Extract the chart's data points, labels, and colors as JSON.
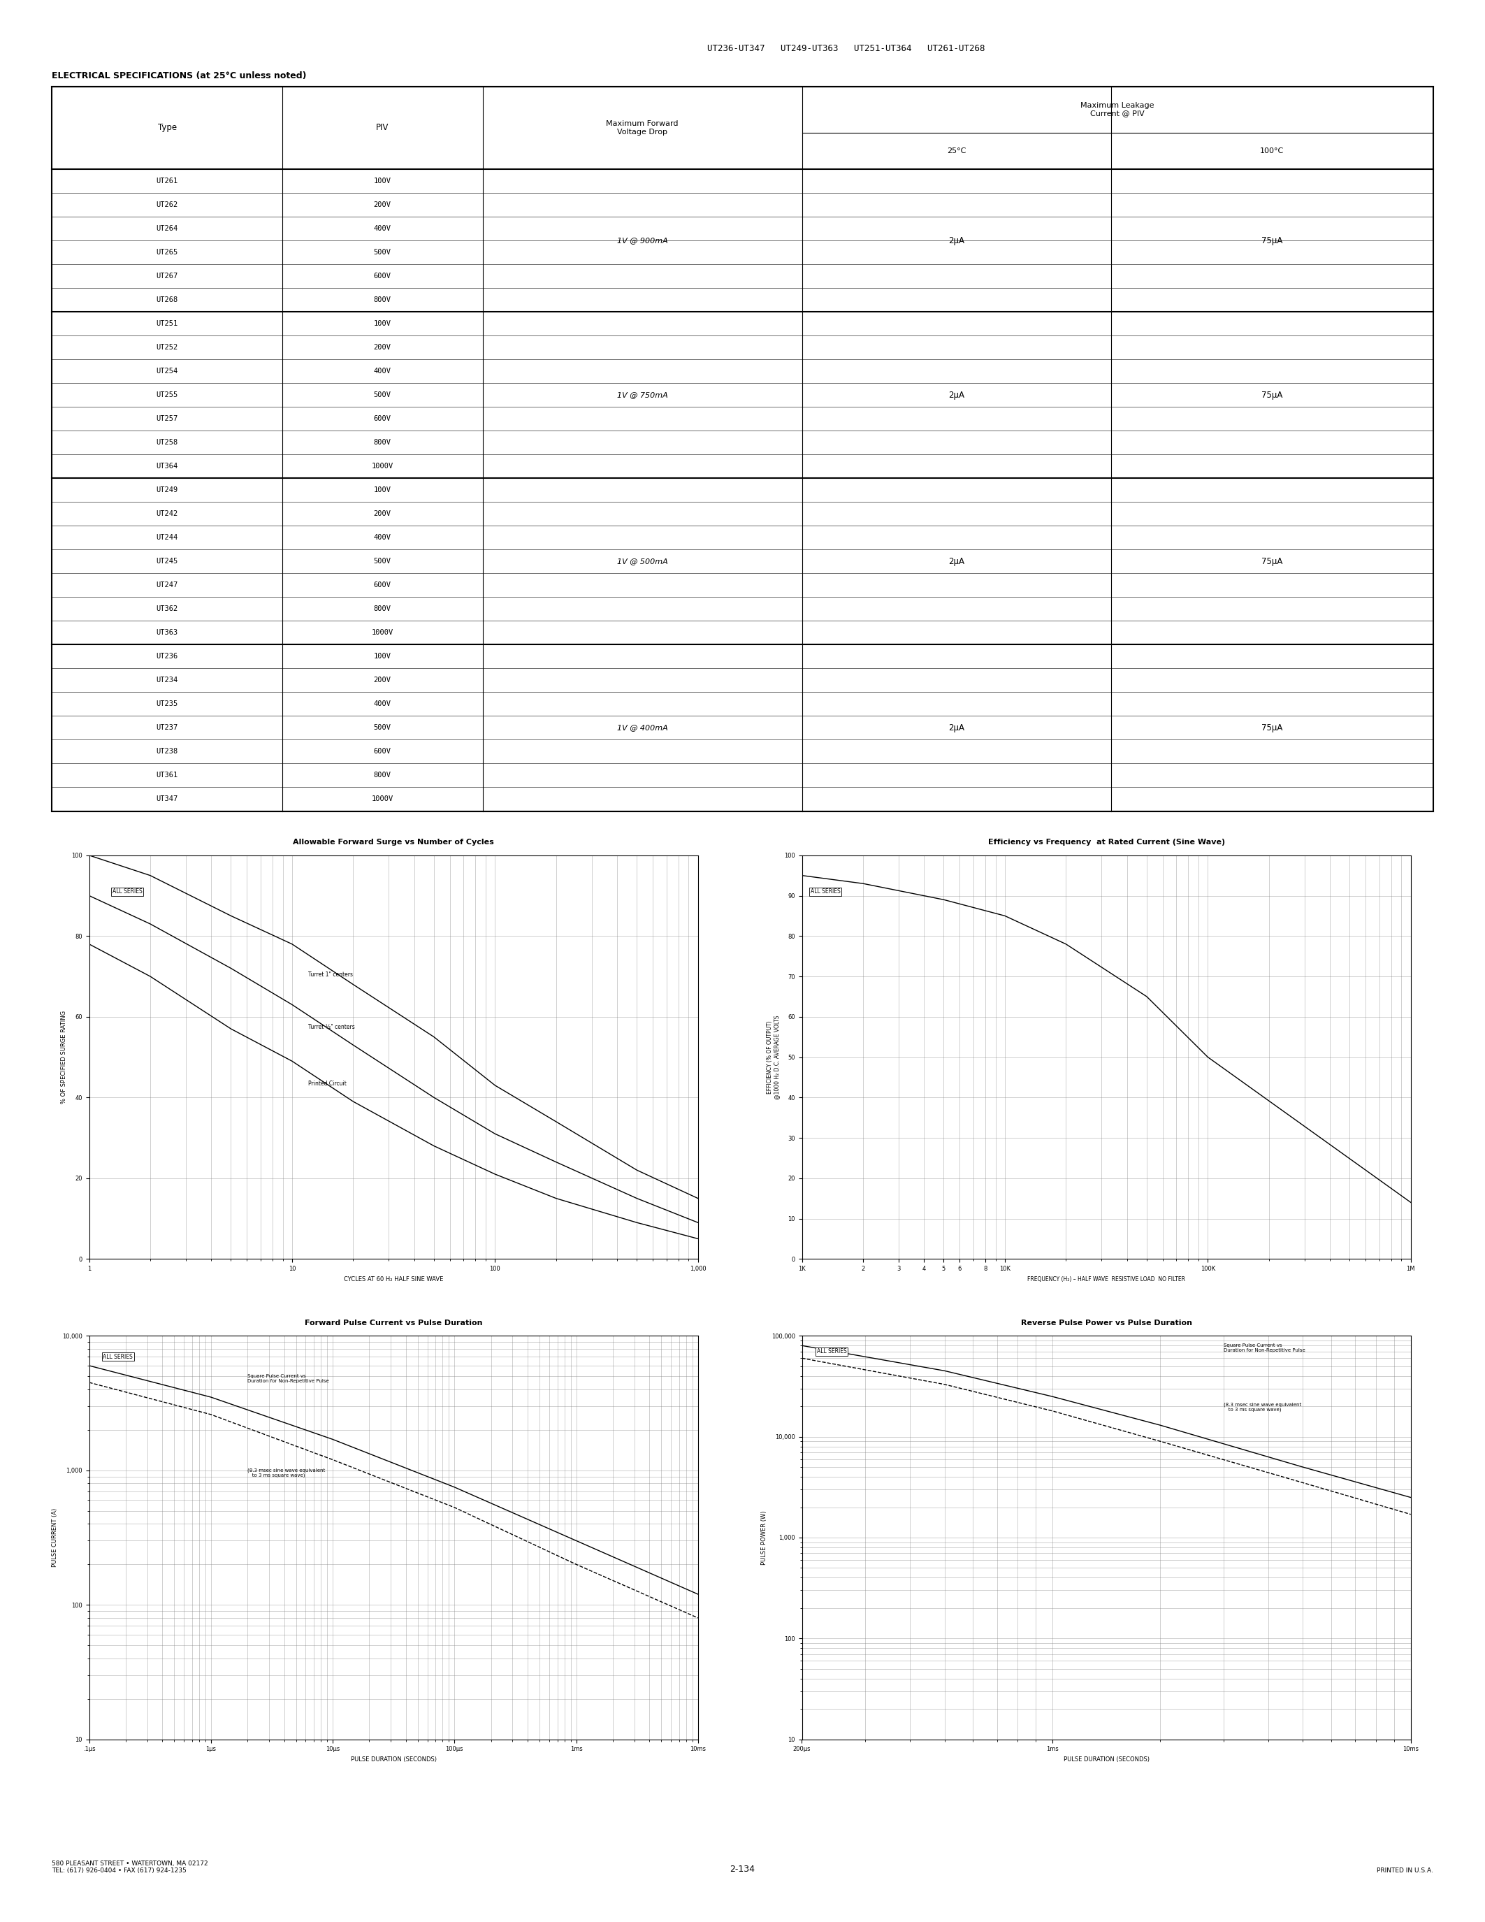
{
  "page_header": "UT236-UT347   UT249-UT363   UT251-UT364   UT261-UT268",
  "elec_spec_title": "ELECTRICAL SPECIFICATIONS (at 25°C unless noted)",
  "table_groups": [
    {
      "types": [
        "UT261",
        "UT262",
        "UT264",
        "UT265",
        "UT267",
        "UT268"
      ],
      "pivs": [
        "100V",
        "200V",
        "400V",
        "500V",
        "600V",
        "800V"
      ],
      "vdrop": "1V @ 900mA",
      "leak_25": "2μA",
      "leak_100": "75μA"
    },
    {
      "types": [
        "UT251",
        "UT252",
        "UT254",
        "UT255",
        "UT257",
        "UT258",
        "UT364"
      ],
      "pivs": [
        "100V",
        "200V",
        "400V",
        "500V",
        "600V",
        "800V",
        "1000V"
      ],
      "vdrop": "1V @ 750mA",
      "leak_25": "2μA",
      "leak_100": "75μA"
    },
    {
      "types": [
        "UT249",
        "UT242",
        "UT244",
        "UT245",
        "UT247",
        "UT362",
        "UT363"
      ],
      "pivs": [
        "100V",
        "200V",
        "400V",
        "500V",
        "600V",
        "800V",
        "1000V"
      ],
      "vdrop": "1V @ 500mA",
      "leak_25": "2μA",
      "leak_100": "75μA"
    },
    {
      "types": [
        "UT236",
        "UT234",
        "UT235",
        "UT237",
        "UT238",
        "UT361",
        "UT347"
      ],
      "pivs": [
        "100V",
        "200V",
        "400V",
        "500V",
        "600V",
        "800V",
        "1000V"
      ],
      "vdrop": "1V @ 400mA",
      "leak_25": "2μA",
      "leak_100": "75μA"
    }
  ],
  "graph1_title": "Allowable Forward Surge vs Number of Cycles",
  "graph1_xlabel": "CYCLES AT 60 H₂ HALF SINE WAVE",
  "graph1_ylabel": "% OF SPECIFIED SURGE RATING",
  "graph2_title": "Efficiency vs Frequency  at Rated Current (Sine Wave)",
  "graph2_xlabel": "FREQUENCY (H₂) – HALF WAVE  RESISTIVE LOAD  NO FILTER",
  "graph2_ylabel": "EFFICIENCY (% OF OUTPUT)\n@1000 H₂ D.C. AVERAGE VOLTS",
  "graph3_title": "Forward Pulse Current vs Pulse Duration",
  "graph3_xlabel": "PULSE DURATION (SECONDS)",
  "graph3_ylabel": "PULSE CURRENT (A)",
  "graph4_title": "Reverse Pulse Power vs Pulse Duration",
  "graph4_xlabel": "PULSE DURATION (SECONDS)",
  "graph4_ylabel": "PULSE POWER (W)",
  "footer_left": "580 PLEASANT STREET • WATERTOWN, MA 02172\nTEL: (617) 926-0404 • FAX (617) 924-1235",
  "footer_center": "2-134",
  "footer_right": "PRINTED IN U.S.A.",
  "bg_color": "#ffffff",
  "text_color": "#000000",
  "grid_color": "#888888"
}
